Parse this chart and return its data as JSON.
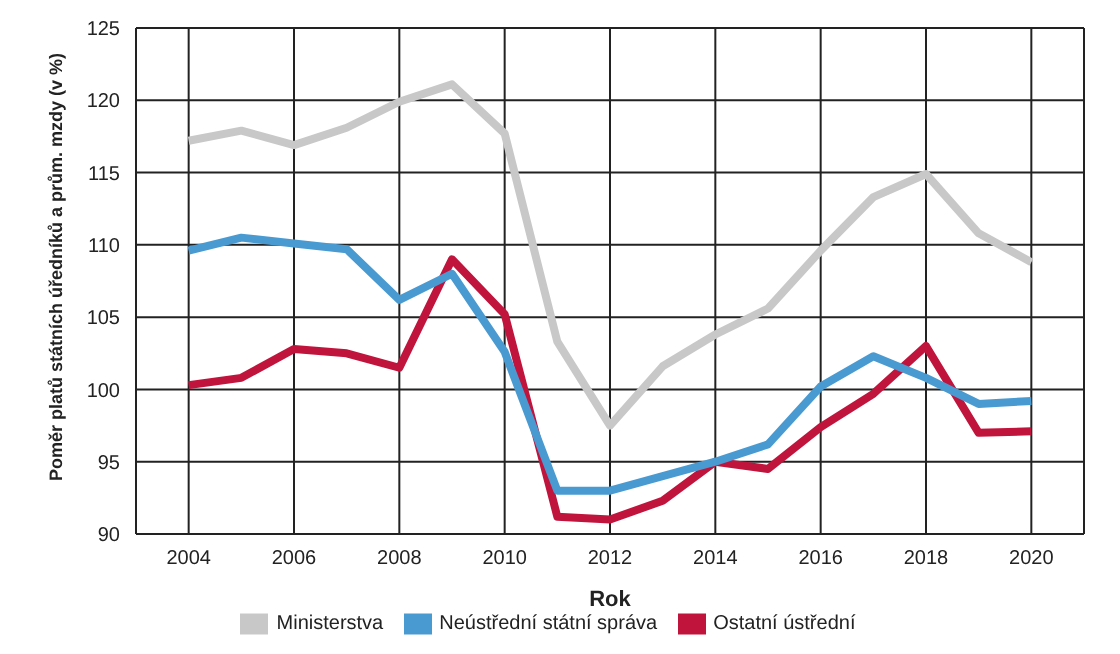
{
  "chart_data": {
    "type": "line",
    "xlabel": "Rok",
    "ylabel": "Poměr platů státních úředníků a prům. mzdy (v %)",
    "x": [
      2004,
      2005,
      2006,
      2007,
      2008,
      2009,
      2010,
      2011,
      2012,
      2013,
      2014,
      2015,
      2016,
      2017,
      2018,
      2019,
      2020
    ],
    "series": [
      {
        "name": "Ministerstva",
        "color": "#c8c8c8",
        "values": [
          117.2,
          117.9,
          116.9,
          118.1,
          119.9,
          121.1,
          117.7,
          103.3,
          97.5,
          101.6,
          103.8,
          105.6,
          109.6,
          113.3,
          114.9,
          110.8,
          108.8
        ]
      },
      {
        "name": "Ostatní ústřední",
        "color": "#c0143c",
        "values": [
          100.3,
          100.8,
          102.8,
          102.5,
          101.5,
          109.0,
          105.2,
          91.2,
          91.0,
          92.3,
          95.0,
          94.5,
          97.4,
          99.7,
          103.0,
          97.0,
          97.1
        ]
      },
      {
        "name": "Neústřední státní správa",
        "color": "#4a9ad2",
        "values": [
          109.6,
          110.5,
          110.1,
          109.7,
          106.2,
          108.0,
          102.6,
          93.0,
          93.0,
          94.0,
          95.0,
          96.2,
          100.2,
          102.3,
          100.8,
          99.0,
          99.2
        ]
      }
    ],
    "xlim": [
      2003,
      2021
    ],
    "xticks": [
      2004,
      2006,
      2008,
      2010,
      2012,
      2014,
      2016,
      2018,
      2020
    ],
    "ylim": [
      90,
      125
    ],
    "yticks": [
      90,
      95,
      100,
      105,
      110,
      115,
      120,
      125
    ],
    "grid": true,
    "legend": "bottom",
    "marker": "none",
    "line_style": "solid"
  }
}
